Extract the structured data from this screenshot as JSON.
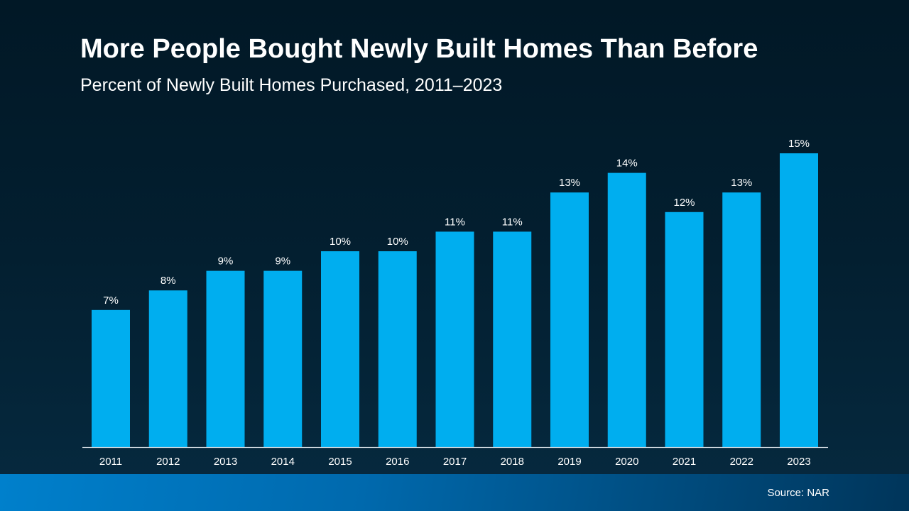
{
  "title": "More People Bought Newly Built Homes Than Before",
  "subtitle": "Percent of Newly Built Homes Purchased, 2011–2023",
  "source": "Source: NAR",
  "colors": {
    "bar": "#00aeef",
    "axis": "#d0d8e0",
    "background": "#021d2d",
    "footer": "#0077c2"
  },
  "chart_data": {
    "type": "bar",
    "title": "More People Bought Newly Built Homes Than Before",
    "subtitle": "Percent of Newly Built Homes Purchased, 2011–2023",
    "categories": [
      "2011",
      "2012",
      "2013",
      "2014",
      "2015",
      "2016",
      "2017",
      "2018",
      "2019",
      "2020",
      "2021",
      "2022",
      "2023"
    ],
    "values": [
      7,
      8,
      9,
      9,
      10,
      10,
      11,
      11,
      13,
      14,
      12,
      13,
      15
    ],
    "data_labels": [
      "7%",
      "8%",
      "9%",
      "9%",
      "10%",
      "10%",
      "11%",
      "11%",
      "13%",
      "14%",
      "12%",
      "13%",
      "15%"
    ],
    "ylim": [
      0,
      16
    ],
    "grid": false,
    "xlabel": "",
    "ylabel": ""
  }
}
